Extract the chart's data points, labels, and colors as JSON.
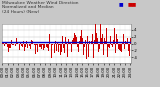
{
  "title": "Milwaukee Weather Wind Direction\nNormalized and Median\n(24 Hours) (New)",
  "background_color": "#c8c8c8",
  "plot_bg_color": "#ffffff",
  "bar_color": "#cc0000",
  "median_color": "#0000cc",
  "median_value": 0.35,
  "ylim": [
    -5.5,
    5.5
  ],
  "ytick_values": [
    -4,
    -2,
    0,
    2,
    4
  ],
  "ytick_labels": [
    "-4",
    "-2",
    "0",
    "2",
    "4"
  ],
  "n_bars": 288,
  "seed": 42,
  "title_fontsize": 3.2,
  "tick_fontsize": 2.8,
  "grid_color": "#bbbbbb",
  "grid_color_x": "#cccccc"
}
